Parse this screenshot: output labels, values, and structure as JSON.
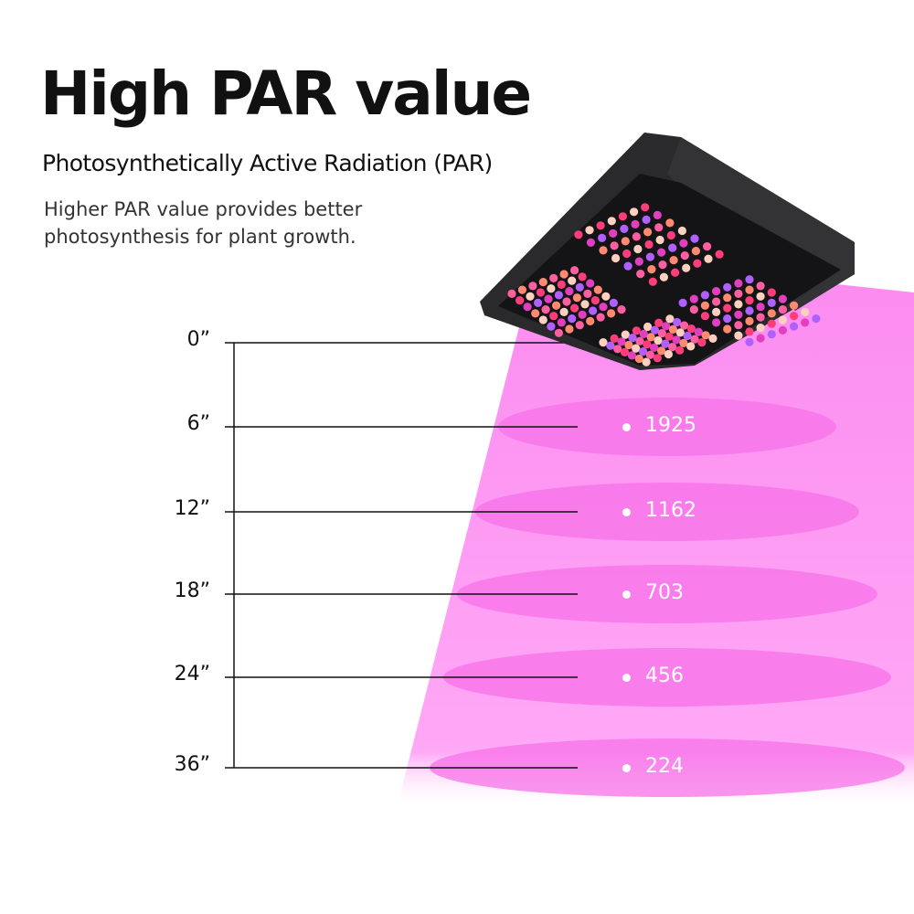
{
  "header": {
    "title": "High PAR value",
    "subtitle": "Photosynthetically Active Radiation (PAR)",
    "description_lines": [
      "Higher PAR value provides better",
      "photosynthesis for plant growth."
    ]
  },
  "chart_data": {
    "type": "table",
    "xlabel": "",
    "ylabel": "",
    "heights": [
      "0”",
      "6”",
      "12”",
      "18”",
      "24”",
      "36”"
    ],
    "par_values": [
      null,
      "1925",
      "1162",
      "703",
      "456",
      "224"
    ]
  },
  "colors": {
    "beam": "#ff9ff5",
    "ring": "#f772e8",
    "lamp": "#1e1e20",
    "text": "#111111"
  }
}
